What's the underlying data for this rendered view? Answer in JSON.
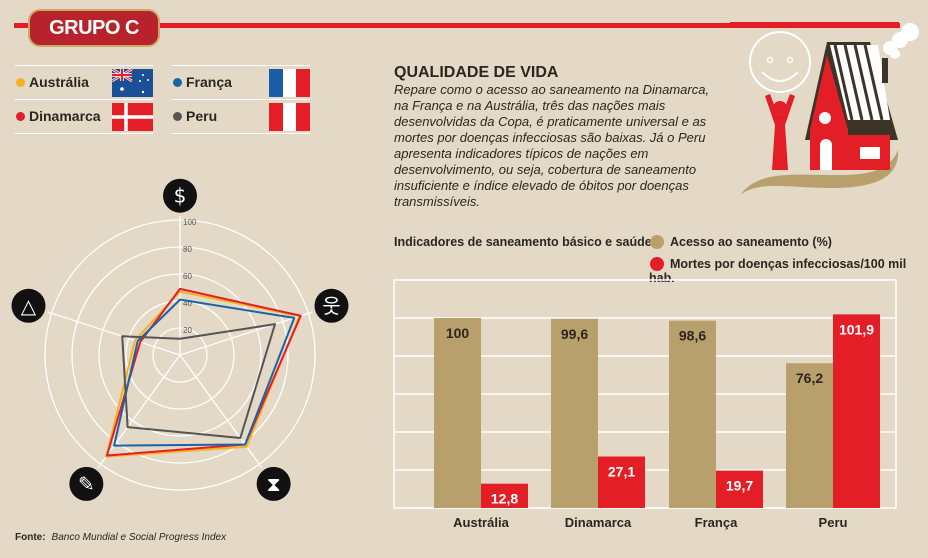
{
  "header": {
    "group_label": "GRUPO C"
  },
  "legend": [
    {
      "name": "Austrália",
      "color": "#f5b21f",
      "flag": "australia-flag"
    },
    {
      "name": "Dinamarca",
      "color": "#e31e26",
      "flag": "denmark-flag"
    },
    {
      "name": "França",
      "color": "#1b63a8",
      "flag": "france-flag"
    },
    {
      "name": "Peru",
      "color": "#555555",
      "flag": "peru-flag"
    }
  ],
  "article": {
    "title": "QUALIDADE DE VIDA",
    "text": "Repare como o acesso ao saneamento na Dinamarca, na França e na Austrália, três das nações mais desenvolvidas da Copa, é praticamente universal e as mortes por doenças infecciosas são baixas. Já o Peru apresenta indicadores típicos de nações em desenvolvimento, ou seja, cobertura de saneamento insuficiente e índice elevado de óbitos por doenças transmissíveis."
  },
  "footer": {
    "label": "Fonte:",
    "source": "Banco Mundial e Social Progress Index"
  },
  "colors": {
    "bg": "#e3d9c6",
    "red": "#e31e26",
    "tan": "#b8a06c",
    "dark": "#2b2620"
  },
  "chart_data": [
    {
      "type": "radar",
      "axes": [
        "dollar-icon",
        "person-icon",
        "hourglass-icon",
        "pencil-icon",
        "pyramid-icon"
      ],
      "rlim": [
        0,
        100
      ],
      "ticks": [
        "20",
        "40",
        "60",
        "80",
        "100"
      ],
      "series": [
        {
          "name": "Austrália",
          "color": "#f5b21f",
          "values": [
            47,
            93,
            84,
            93,
            35
          ]
        },
        {
          "name": "Dinamarca",
          "color": "#e31e26",
          "values": [
            49,
            94,
            82,
            92,
            31
          ]
        },
        {
          "name": "França",
          "color": "#1b63a8",
          "values": [
            41,
            89,
            82,
            83,
            33
          ]
        },
        {
          "name": "Peru",
          "color": "#555555",
          "values": [
            12,
            74,
            76,
            66,
            45
          ]
        }
      ]
    },
    {
      "type": "bar",
      "title": "Indicadores de saneamento básico e saúde",
      "categories": [
        "Austrália",
        "Dinamarca",
        "França",
        "Peru"
      ],
      "series": [
        {
          "name": "Acesso ao saneamento (%)",
          "color": "#b8a06c",
          "values": [
            100,
            99.6,
            98.6,
            76.2
          ],
          "labels": [
            "100",
            "99,6",
            "98,6",
            "76,2"
          ]
        },
        {
          "name": "Mortes por doenças infecciosas/100 mil hab.",
          "color": "#e31e26",
          "values": [
            12.8,
            27.1,
            19.7,
            101.9
          ],
          "labels": [
            "12,8",
            "27,1",
            "19,7",
            "101,9"
          ]
        }
      ],
      "ylim": [
        0,
        120
      ],
      "grid": true,
      "legend": "top-right"
    }
  ]
}
